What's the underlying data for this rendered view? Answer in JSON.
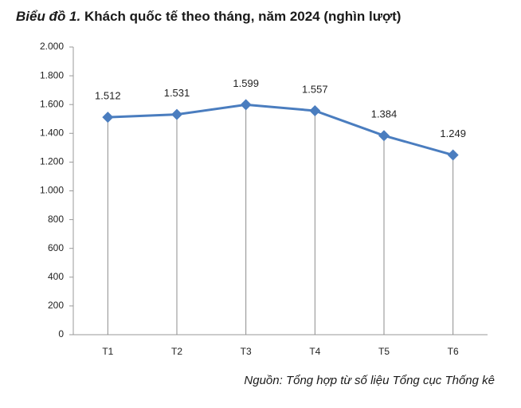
{
  "chart_data": {
    "type": "line",
    "title_label": "Biểu đồ 1.",
    "title": "Khách quốc tế theo tháng, năm 2024 (nghìn lượt)",
    "source": "Nguồn: Tổng hợp từ số liệu Tổng cục Thống kê",
    "categories": [
      "T1",
      "T2",
      "T3",
      "T4",
      "T5",
      "T6"
    ],
    "series": [
      {
        "color": "#4a7dbf",
        "values": [
          1512,
          1531,
          1599,
          1557,
          1384,
          1249
        ],
        "value_labels": [
          "1.512",
          "1.531",
          "1.599",
          "1.557",
          "1.384",
          "1.249"
        ]
      }
    ],
    "ylim": [
      0,
      2000
    ],
    "yticks": [
      0,
      200,
      400,
      600,
      800,
      {
        "value": 1000,
        "label": "1.000"
      },
      {
        "value": 1200,
        "label": "1.200"
      },
      {
        "value": 1400,
        "label": "1.400"
      },
      {
        "value": 1600,
        "label": "1.600"
      },
      {
        "value": 1800,
        "label": "1.800"
      },
      {
        "value": 2000,
        "label": "2.000"
      }
    ],
    "grid": false
  }
}
